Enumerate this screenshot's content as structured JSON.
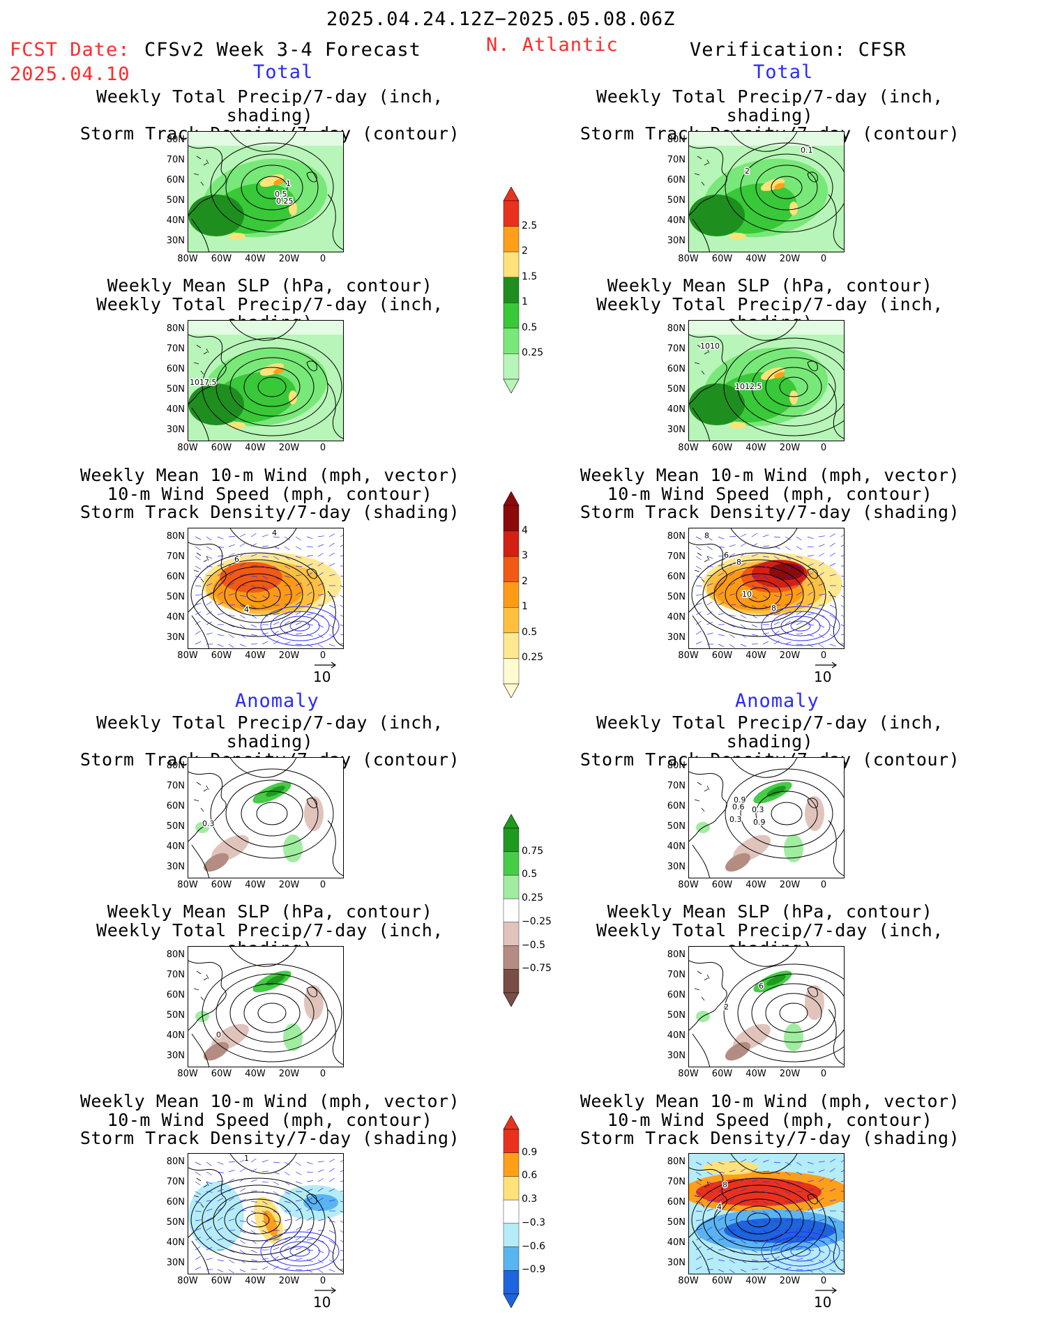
{
  "header": {
    "period": "2025.04.24.12Z−2025.05.08.06Z",
    "fcst_label": "FCST Date:",
    "fcst_date": "2025.04.10",
    "model": "CFSv2 Week 3-4 Forecast",
    "region": "N. Atlantic",
    "verification": "Verification: CFSR"
  },
  "sections": {
    "total": "Total",
    "anomaly": "Anomaly"
  },
  "panel_titles": {
    "precip_storm": [
      "Weekly Total Precip/7-day (inch, shading)",
      "Storm Track Density/7-day (contour)"
    ],
    "slp_precip": [
      "Weekly Mean SLP (hPa, contour)",
      "Weekly Total Precip/7-day (inch, shading)"
    ],
    "wind": [
      "Weekly Mean 10-m Wind (mph, vector)",
      "10-m Wind Speed (mph, contour)",
      "Storm Track Density/7-day (shading)"
    ]
  },
  "axes": {
    "lat_ticks": [
      "80N",
      "70N",
      "60N",
      "50N",
      "40N",
      "30N"
    ],
    "lon_ticks": [
      "80W",
      "60W",
      "40W",
      "20W",
      "0"
    ]
  },
  "vector_ref": "10",
  "colorbars": {
    "precip_total": {
      "labels": [
        "2.5",
        "2",
        "1.5",
        "1",
        "0.5",
        "0.25"
      ],
      "colors": [
        "#e8321e",
        "#ff9f1a",
        "#ffe278",
        "#1e8f1e",
        "#38c838",
        "#78e878",
        "#b8f5b8"
      ]
    },
    "storm_total": {
      "labels": [
        "4",
        "3",
        "2",
        "1",
        "0.5",
        "0.25"
      ],
      "colors": [
        "#8c0a0a",
        "#d22014",
        "#f05a14",
        "#ff9a14",
        "#ffc040",
        "#ffe890",
        "#fffbd0"
      ]
    },
    "precip_anom": {
      "labels": [
        "0.75",
        "0.5",
        "0.25",
        "−0.25",
        "−0.5",
        "−0.75"
      ],
      "colors": [
        "#1e9a1e",
        "#46cc46",
        "#a0eca0",
        "#ffffff",
        "#e0c4bc",
        "#b48c82",
        "#7a4e44"
      ]
    },
    "storm_anom": {
      "labels": [
        "0.9",
        "0.6",
        "0.3",
        "−0.3",
        "−0.6",
        "−0.9"
      ],
      "colors": [
        "#e8321e",
        "#ff9f1a",
        "#ffe278",
        "#ffffff",
        "#b4ecf8",
        "#5ab4f0",
        "#1e64dc"
      ]
    }
  },
  "contour_labels": {
    "p1": [
      "1",
      "0.5",
      "0.25"
    ],
    "p2": [
      "0.1",
      "2"
    ],
    "p3": [
      "1017.5"
    ],
    "p4": [
      "1010",
      "1012.5"
    ],
    "p5": [
      "4",
      "6",
      "4"
    ],
    "p6": [
      "8",
      "6",
      "8",
      "10",
      "8"
    ],
    "p7": [
      "0.3"
    ],
    "p8": [
      "0.9",
      "0.6",
      "0.3",
      "0.3",
      "0.9"
    ],
    "p9": [
      "0"
    ],
    "p10": [
      "6",
      "2"
    ],
    "p11": [
      "1"
    ],
    "p12": [
      "8",
      "4"
    ]
  },
  "colors": {
    "header_red": "#ff2a2a",
    "section_blue": "#2a2aff"
  }
}
